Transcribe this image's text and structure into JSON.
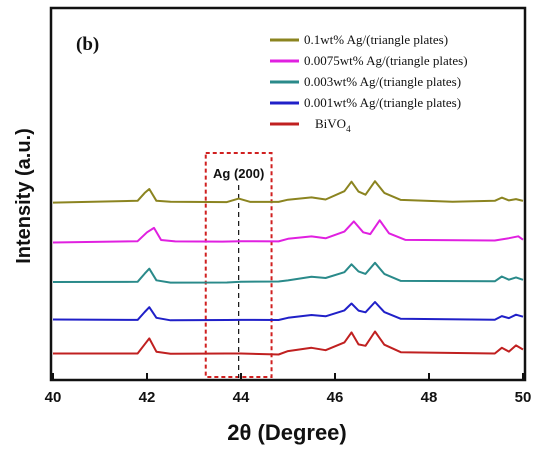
{
  "chart_data": {
    "type": "line",
    "panel_label": "(b)",
    "xlabel": "2θ (Degree)",
    "ylabel": "Intensity (a.u.)",
    "xlim": [
      40,
      50
    ],
    "xticks": [
      40,
      42,
      44,
      46,
      48,
      50
    ],
    "grid": false,
    "legend_position": "top-right",
    "annotation": {
      "text": "Ag (200)",
      "x": 43.95,
      "box_x": [
        43.25,
        44.65
      ]
    },
    "series": [
      {
        "name": "0.1wt% Ag/(triangle plates)",
        "color": "#8b8420",
        "baseline": 4.0,
        "points": [
          [
            40,
            0
          ],
          [
            41.8,
            0.02
          ],
          [
            41.95,
            0.25
          ],
          [
            42.05,
            0.4
          ],
          [
            42.2,
            0.05
          ],
          [
            42.5,
            0
          ],
          [
            43.7,
            0
          ],
          [
            43.95,
            0.1
          ],
          [
            44.2,
            0
          ],
          [
            44.8,
            0
          ],
          [
            45.0,
            0.05
          ],
          [
            45.5,
            0.12
          ],
          [
            45.8,
            0.08
          ],
          [
            46.2,
            0.3
          ],
          [
            46.35,
            0.58
          ],
          [
            46.5,
            0.3
          ],
          [
            46.65,
            0.22
          ],
          [
            46.85,
            0.6
          ],
          [
            47.05,
            0.25
          ],
          [
            47.4,
            0.05
          ],
          [
            48.5,
            0.02
          ],
          [
            49.4,
            0.02
          ],
          [
            49.55,
            0.12
          ],
          [
            49.7,
            0.05
          ],
          [
            49.85,
            0.1
          ],
          [
            50,
            0.05
          ]
        ]
      },
      {
        "name": "0.0075wt% Ag/(triangle plates)",
        "color": "#e020e0",
        "baseline": 3.0,
        "points": [
          [
            40,
            0
          ],
          [
            41.8,
            0.02
          ],
          [
            42.0,
            0.3
          ],
          [
            42.15,
            0.42
          ],
          [
            42.3,
            0.05
          ],
          [
            42.6,
            0
          ],
          [
            43.6,
            0
          ],
          [
            44.0,
            0.02
          ],
          [
            44.8,
            0
          ],
          [
            45.0,
            0.08
          ],
          [
            45.5,
            0.15
          ],
          [
            45.8,
            0.1
          ],
          [
            46.2,
            0.3
          ],
          [
            46.4,
            0.62
          ],
          [
            46.6,
            0.3
          ],
          [
            46.75,
            0.25
          ],
          [
            46.95,
            0.65
          ],
          [
            47.15,
            0.25
          ],
          [
            47.5,
            0.05
          ],
          [
            49.4,
            0.03
          ],
          [
            49.7,
            0.1
          ],
          [
            49.9,
            0.15
          ],
          [
            50,
            0.08
          ]
        ]
      },
      {
        "name": "0.003wt% Ag/(triangle plates)",
        "color": "#2a8a8a",
        "baseline": 2.0,
        "points": [
          [
            40,
            0
          ],
          [
            41.8,
            0.02
          ],
          [
            41.95,
            0.25
          ],
          [
            42.05,
            0.38
          ],
          [
            42.2,
            0.05
          ],
          [
            42.5,
            0
          ],
          [
            43.7,
            0
          ],
          [
            44.0,
            0.02
          ],
          [
            44.8,
            0
          ],
          [
            45.0,
            0.05
          ],
          [
            45.5,
            0.15
          ],
          [
            45.8,
            0.1
          ],
          [
            46.2,
            0.3
          ],
          [
            46.35,
            0.52
          ],
          [
            46.5,
            0.3
          ],
          [
            46.65,
            0.22
          ],
          [
            46.85,
            0.56
          ],
          [
            47.05,
            0.25
          ],
          [
            47.4,
            0.05
          ],
          [
            49.4,
            0.02
          ],
          [
            49.55,
            0.15
          ],
          [
            49.7,
            0.05
          ],
          [
            49.85,
            0.12
          ],
          [
            50,
            0.06
          ]
        ]
      },
      {
        "name": "0.001wt% Ag/(triangle plates)",
        "color": "#2020c8",
        "baseline": 1.0,
        "points": [
          [
            40,
            0
          ],
          [
            41.8,
            0.02
          ],
          [
            41.95,
            0.25
          ],
          [
            42.05,
            0.36
          ],
          [
            42.2,
            0.05
          ],
          [
            42.5,
            0
          ],
          [
            43.7,
            0
          ],
          [
            44.0,
            0.02
          ],
          [
            44.8,
            0
          ],
          [
            45.0,
            0.08
          ],
          [
            45.5,
            0.16
          ],
          [
            45.8,
            0.1
          ],
          [
            46.2,
            0.3
          ],
          [
            46.35,
            0.5
          ],
          [
            46.5,
            0.28
          ],
          [
            46.65,
            0.22
          ],
          [
            46.85,
            0.54
          ],
          [
            47.05,
            0.25
          ],
          [
            47.4,
            0.05
          ],
          [
            49.4,
            0.02
          ],
          [
            49.55,
            0.12
          ],
          [
            49.7,
            0.05
          ],
          [
            49.85,
            0.14
          ],
          [
            50,
            0.08
          ]
        ]
      },
      {
        "name": "BiVO4",
        "color": "#c02020",
        "baseline": 0.0,
        "points": [
          [
            40,
            0
          ],
          [
            41.8,
            0.02
          ],
          [
            41.95,
            0.3
          ],
          [
            42.05,
            0.45
          ],
          [
            42.2,
            0.05
          ],
          [
            42.5,
            0
          ],
          [
            43.7,
            0
          ],
          [
            44.0,
            0.02
          ],
          [
            44.8,
            0
          ],
          [
            45.0,
            0.1
          ],
          [
            45.5,
            0.2
          ],
          [
            45.8,
            0.12
          ],
          [
            46.2,
            0.35
          ],
          [
            46.35,
            0.65
          ],
          [
            46.5,
            0.3
          ],
          [
            46.65,
            0.25
          ],
          [
            46.85,
            0.68
          ],
          [
            47.05,
            0.28
          ],
          [
            47.4,
            0.05
          ],
          [
            49.4,
            0.03
          ],
          [
            49.55,
            0.2
          ],
          [
            49.7,
            0.08
          ],
          [
            49.85,
            0.25
          ],
          [
            50,
            0.12
          ]
        ]
      }
    ]
  }
}
